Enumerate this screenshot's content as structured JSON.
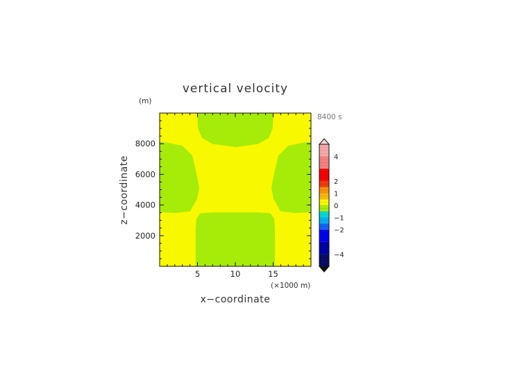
{
  "chart_data": {
    "type": "heatmap",
    "title": "vertical velocity",
    "xlabel": "x−coordinate",
    "ylabel": "z−coordinate",
    "x_unit": "(×1000 m)",
    "y_unit": "(m)",
    "time_label": "8400 s",
    "xlim": [
      0,
      20
    ],
    "ylim": [
      0,
      10000
    ],
    "x_ticks": [
      5,
      10,
      15
    ],
    "y_ticks": [
      2000,
      4000,
      6000,
      8000
    ],
    "x_tick_labels": [
      "5",
      "10",
      "15"
    ],
    "y_tick_labels": [
      "2000",
      "4000",
      "6000",
      "8000"
    ],
    "regions": [
      {
        "name": "outer",
        "value": 0.5,
        "color": "#f8f800"
      },
      {
        "name": "central updraft core",
        "value": 0.5,
        "color": "#f8f800"
      },
      {
        "name": "left band",
        "value": -0.5,
        "color": "#a6ec08"
      },
      {
        "name": "right band",
        "value": -0.5,
        "color": "#a6ec08"
      },
      {
        "name": "top-center",
        "value": -0.5,
        "color": "#a6ec08"
      },
      {
        "name": "bottom-center",
        "value": -0.5,
        "color": "#a6ec08"
      }
    ],
    "colorbar": {
      "min": -5,
      "max": 5,
      "extend": "both",
      "under_color": "#0f0f0f",
      "over_color": "#f9d6d6",
      "tick_values": [
        4,
        2,
        1,
        0,
        -1,
        -2,
        -4
      ],
      "tick_labels": [
        "4",
        "2",
        "1",
        "0",
        "−1",
        "−2",
        "−4"
      ],
      "bins": [
        {
          "from": -5,
          "to": -4,
          "color": "#0a0a6a"
        },
        {
          "from": -4,
          "to": -3,
          "color": "#0000a8"
        },
        {
          "from": -3,
          "to": -2,
          "color": "#0000f0"
        },
        {
          "from": -2,
          "to": -1.5,
          "color": "#1064f8"
        },
        {
          "from": -1.5,
          "to": -1,
          "color": "#08aef0"
        },
        {
          "from": -1,
          "to": -0.5,
          "color": "#00d8d8"
        },
        {
          "from": -0.5,
          "to": 0,
          "color": "#a6ec08"
        },
        {
          "from": 0,
          "to": 0.5,
          "color": "#f8f800"
        },
        {
          "from": 0.5,
          "to": 1,
          "color": "#f8b808"
        },
        {
          "from": 1,
          "to": 1.5,
          "color": "#f89008"
        },
        {
          "from": 1.5,
          "to": 2,
          "color": "#f03a08"
        },
        {
          "from": 2,
          "to": 3,
          "color": "#f80000"
        },
        {
          "from": 3,
          "to": 4,
          "color": "#f88080"
        },
        {
          "from": 4,
          "to": 5,
          "color": "#f8a8a8"
        }
      ]
    }
  }
}
